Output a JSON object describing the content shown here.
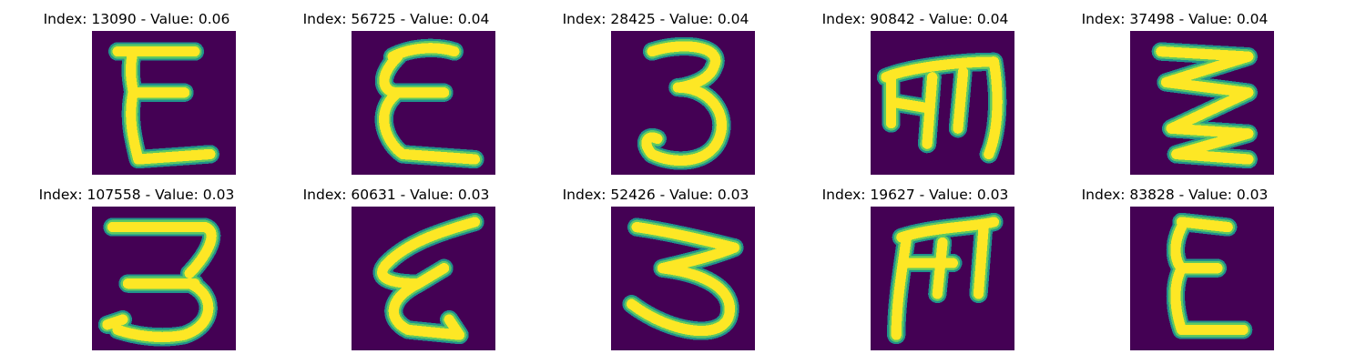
{
  "colors": {
    "background": "#440154",
    "edge": "#21918c",
    "mid": "#5ec962",
    "stroke": "#fde725"
  },
  "samples": [
    {
      "title": "Index: 13090 - Value: 0.06",
      "glyph": "E"
    },
    {
      "title": "Index: 56725 - Value: 0.04",
      "glyph": "E"
    },
    {
      "title": "Index: 28425 - Value: 0.04",
      "glyph": "3"
    },
    {
      "title": "Index: 90842 - Value: 0.04",
      "glyph": "m"
    },
    {
      "title": "Index: 37498 - Value: 0.04",
      "glyph": "zigzag"
    },
    {
      "title": "Index: 107558 - Value: 0.03",
      "glyph": "3"
    },
    {
      "title": "Index: 60631 - Value: 0.03",
      "glyph": "E"
    },
    {
      "title": "Index: 52426 - Value: 0.03",
      "glyph": "3"
    },
    {
      "title": "Index: 19627 - Value: 0.03",
      "glyph": "m"
    },
    {
      "title": "Index: 83828 - Value: 0.03",
      "glyph": "E"
    }
  ]
}
